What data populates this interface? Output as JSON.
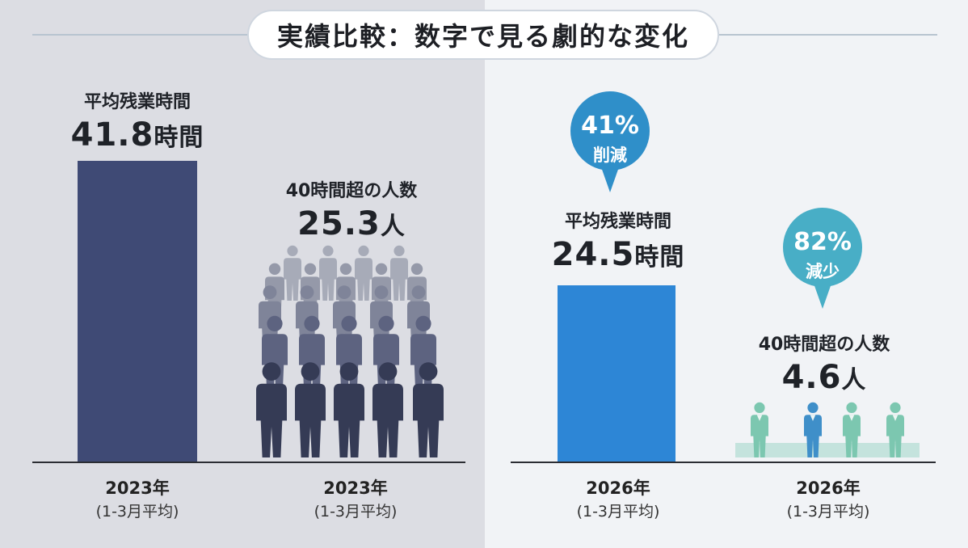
{
  "title": "実績比較：数字で見る劇的な変化",
  "chart_data": [
    {
      "type": "bar",
      "period": "2023年",
      "period_sub": "(1-3月平均)",
      "overtime": {
        "label": "平均残業時間",
        "value": 41.8,
        "unit": "時間",
        "display": "41.8",
        "color": "#3f4a75"
      },
      "over40": {
        "label": "40時間超の人数",
        "value": 25.3,
        "unit": "人",
        "display": "25.3",
        "icon": "crowd-of-people-icon"
      }
    },
    {
      "type": "bar",
      "period": "2026年",
      "period_sub": "(1-3月平均)",
      "overtime": {
        "label": "平均残業時間",
        "value": 24.5,
        "unit": "時間",
        "display": "24.5",
        "color": "#2d86d6"
      },
      "over40": {
        "label": "40時間超の人数",
        "value": 4.6,
        "unit": "人",
        "display": "4.6",
        "icon": "four-people-icon"
      },
      "callouts": [
        {
          "value": "41%",
          "text": "削減",
          "color": "#2f8fc9"
        },
        {
          "value": "82%",
          "text": "減少",
          "color": "#48aec6"
        }
      ]
    }
  ]
}
